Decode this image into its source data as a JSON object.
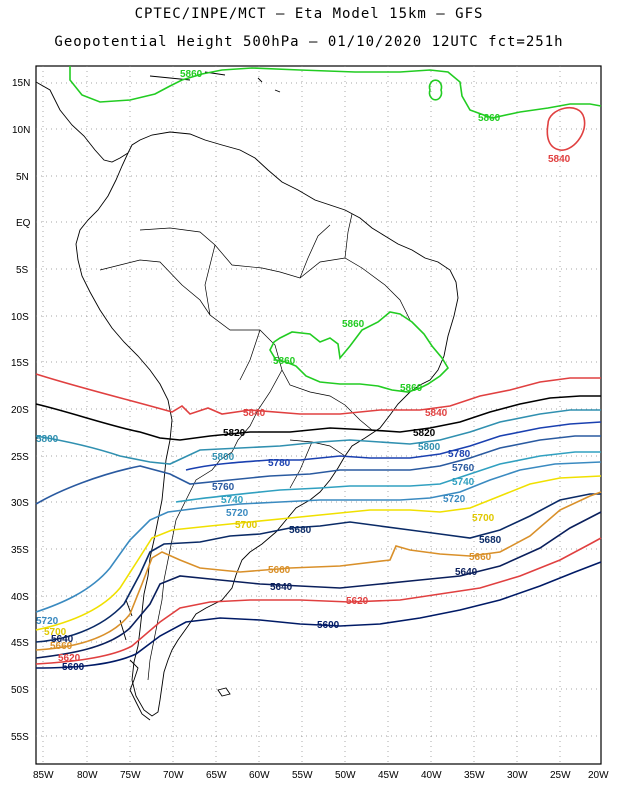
{
  "header": {
    "line1": "CPTEC/INPE/MCT –  Eta Model 15km – GFS",
    "line2": "Geopotential Height 500hPa – 01/10/2020 12UTC fct=251h"
  },
  "axes": {
    "lat_labels": [
      "15N",
      "10N",
      "5N",
      "EQ",
      "5S",
      "10S",
      "15S",
      "20S",
      "25S",
      "30S",
      "35S",
      "40S",
      "45S",
      "50S",
      "55S"
    ],
    "lon_labels": [
      "85W",
      "80W",
      "75W",
      "70W",
      "65W",
      "60W",
      "55W",
      "50W",
      "45W",
      "40W",
      "35W",
      "30W",
      "25W",
      "20W"
    ]
  },
  "colors": {
    "c5560": "#001a66",
    "c5580": "#e03030",
    "c5620": "#e04040",
    "c5640": "#0a1f5c",
    "c5660": "#d9902a",
    "c5680": "#0a2a66",
    "c5700": "#f0e000",
    "c5720": "#3a8ac0",
    "c5740": "#30a0c0",
    "c5760": "#2a5aa0",
    "c5780": "#1a40b0",
    "c5800": "#3090b0",
    "c5820": "#000000",
    "c5840": "#e04040",
    "c5860": "#22cc22"
  },
  "contour_labels": {
    "n5860_top": "5860",
    "n5860_right": "5860",
    "n5840_right": "5840",
    "n5860_brazil_a": "5860",
    "n5860_brazil_b": "5860",
    "n5860_brazil_c": "5860",
    "n5840_mid": "5840",
    "n5840_east": "5840",
    "n5820_mid": "5820",
    "n5820_east": "5820",
    "n5800_west": "5800",
    "n5800_mid": "5800",
    "n5800_east": "5800",
    "n5780_mid": "5780",
    "n5780_east": "5780",
    "n5760_mid": "5760",
    "n5760_east": "5760",
    "n5740_mid": "5740",
    "n5740_east": "5740",
    "n5720_mid": "5720",
    "n5720_east": "5720",
    "n5720_west": "5720",
    "n5700_mid": "5700",
    "n5700_east": "5700",
    "n5700_west": "5700",
    "n5680_mid": "5680",
    "n5680_east": "5680",
    "n5660_mid": "5660",
    "n5660_east": "5660",
    "n5660_west": "5660",
    "n5640_mid": "5640",
    "n5640_east": "5640",
    "n5640_west": "5640",
    "n5620_mid": "5620",
    "n5620_west": "5620",
    "n5600_mid": "5600",
    "n5600_west": "5600"
  }
}
